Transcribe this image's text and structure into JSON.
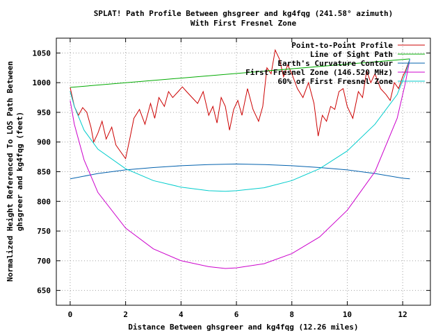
{
  "chart_data": {
    "type": "line",
    "title_line1": "SPLAT! Path Profile Between ghsgreer and kg4fqg (241.58° azimuth)",
    "title_line2": "With First Fresnel Zone",
    "xlabel": "Distance Between ghsgreer and kg4fqg (12.26 miles)",
    "ylabel_line1": "Normalized Height Referenced To LOS Path Between",
    "ylabel_line2": "ghsgreer and kg4fqg (feet)",
    "xlim": [
      -0.5,
      13
    ],
    "ylim": [
      625,
      1075
    ],
    "x_ticks": [
      0,
      2,
      4,
      6,
      8,
      10,
      12
    ],
    "x_tick_labels": [
      "0",
      "2",
      "4",
      "6",
      "8",
      "10",
      "12"
    ],
    "y_ticks": [
      650,
      700,
      750,
      800,
      850,
      900,
      950,
      1000,
      1050
    ],
    "y_tick_labels": [
      "650",
      "700",
      "750",
      "800",
      "850",
      "900",
      "950",
      "1000",
      "1050"
    ],
    "grid": true,
    "legend_position": "top-right",
    "series": [
      {
        "name": "Point-to-Point Profile",
        "color": "#cc0000",
        "x": [
          0,
          0.15,
          0.3,
          0.45,
          0.6,
          0.75,
          0.85,
          1.0,
          1.15,
          1.3,
          1.5,
          1.65,
          1.8,
          2.0,
          2.15,
          2.3,
          2.5,
          2.7,
          2.9,
          3.05,
          3.2,
          3.4,
          3.55,
          3.7,
          3.9,
          4.05,
          4.2,
          4.4,
          4.6,
          4.8,
          5.0,
          5.15,
          5.3,
          5.45,
          5.6,
          5.75,
          5.9,
          6.05,
          6.2,
          6.4,
          6.6,
          6.8,
          6.95,
          7.1,
          7.25,
          7.4,
          7.55,
          7.7,
          7.85,
          8.0,
          8.2,
          8.4,
          8.6,
          8.8,
          8.95,
          9.1,
          9.25,
          9.4,
          9.55,
          9.7,
          9.85,
          10.0,
          10.2,
          10.4,
          10.55,
          10.7,
          10.85,
          11.0,
          11.2,
          11.4,
          11.55,
          11.7,
          11.85,
          12.0,
          12.1,
          12.26
        ],
        "values": [
          992,
          960,
          945,
          958,
          950,
          925,
          900,
          915,
          935,
          905,
          925,
          895,
          885,
          872,
          905,
          940,
          955,
          930,
          965,
          940,
          975,
          960,
          985,
          975,
          985,
          993,
          985,
          975,
          965,
          985,
          945,
          960,
          932,
          975,
          960,
          920,
          955,
          970,
          945,
          990,
          955,
          935,
          960,
          1025,
          1015,
          1055,
          1040,
          1010,
          1030,
          1015,
          990,
          975,
          1000,
          965,
          910,
          945,
          935,
          960,
          955,
          985,
          990,
          960,
          940,
          985,
          975,
          1020,
          1000,
          1015,
          990,
          980,
          970,
          1000,
          990,
          1010,
          1020,
          1040
        ]
      },
      {
        "name": "Line of Sight Path",
        "color": "#00aa00",
        "x": [
          0,
          12.26
        ],
        "values": [
          992,
          1040
        ]
      },
      {
        "name": "Earth's Curvature Contour",
        "color": "#0060ad",
        "x": [
          0,
          1,
          2,
          3,
          4,
          5,
          6,
          7,
          8,
          9,
          10,
          11,
          12,
          12.26
        ],
        "values": [
          838,
          847,
          853,
          857,
          860,
          862,
          863,
          862,
          860,
          857,
          853,
          847,
          839,
          838
        ]
      },
      {
        "name": "First Fresnel Zone (146.520 MHz)",
        "color": "#cc00cc",
        "x": [
          0,
          0.15,
          0.5,
          1,
          2,
          3,
          4,
          5,
          5.6,
          6,
          7,
          8,
          9,
          10,
          11,
          11.8,
          12.1,
          12.26
        ],
        "values": [
          970,
          930,
          870,
          815,
          755,
          720,
          700,
          690,
          687,
          688,
          695,
          712,
          740,
          785,
          850,
          940,
          1000,
          1040
        ]
      },
      {
        "name": "60% of First Fresnel Zone",
        "color": "#00cccc",
        "x": [
          0,
          0.15,
          0.5,
          1,
          2,
          3,
          4,
          5,
          5.6,
          6,
          7,
          8,
          9,
          10,
          11,
          11.8,
          12.1,
          12.26
        ],
        "values": [
          985,
          960,
          920,
          888,
          855,
          835,
          824,
          818,
          817,
          818,
          823,
          835,
          855,
          885,
          930,
          980,
          1015,
          1040
        ]
      }
    ]
  }
}
